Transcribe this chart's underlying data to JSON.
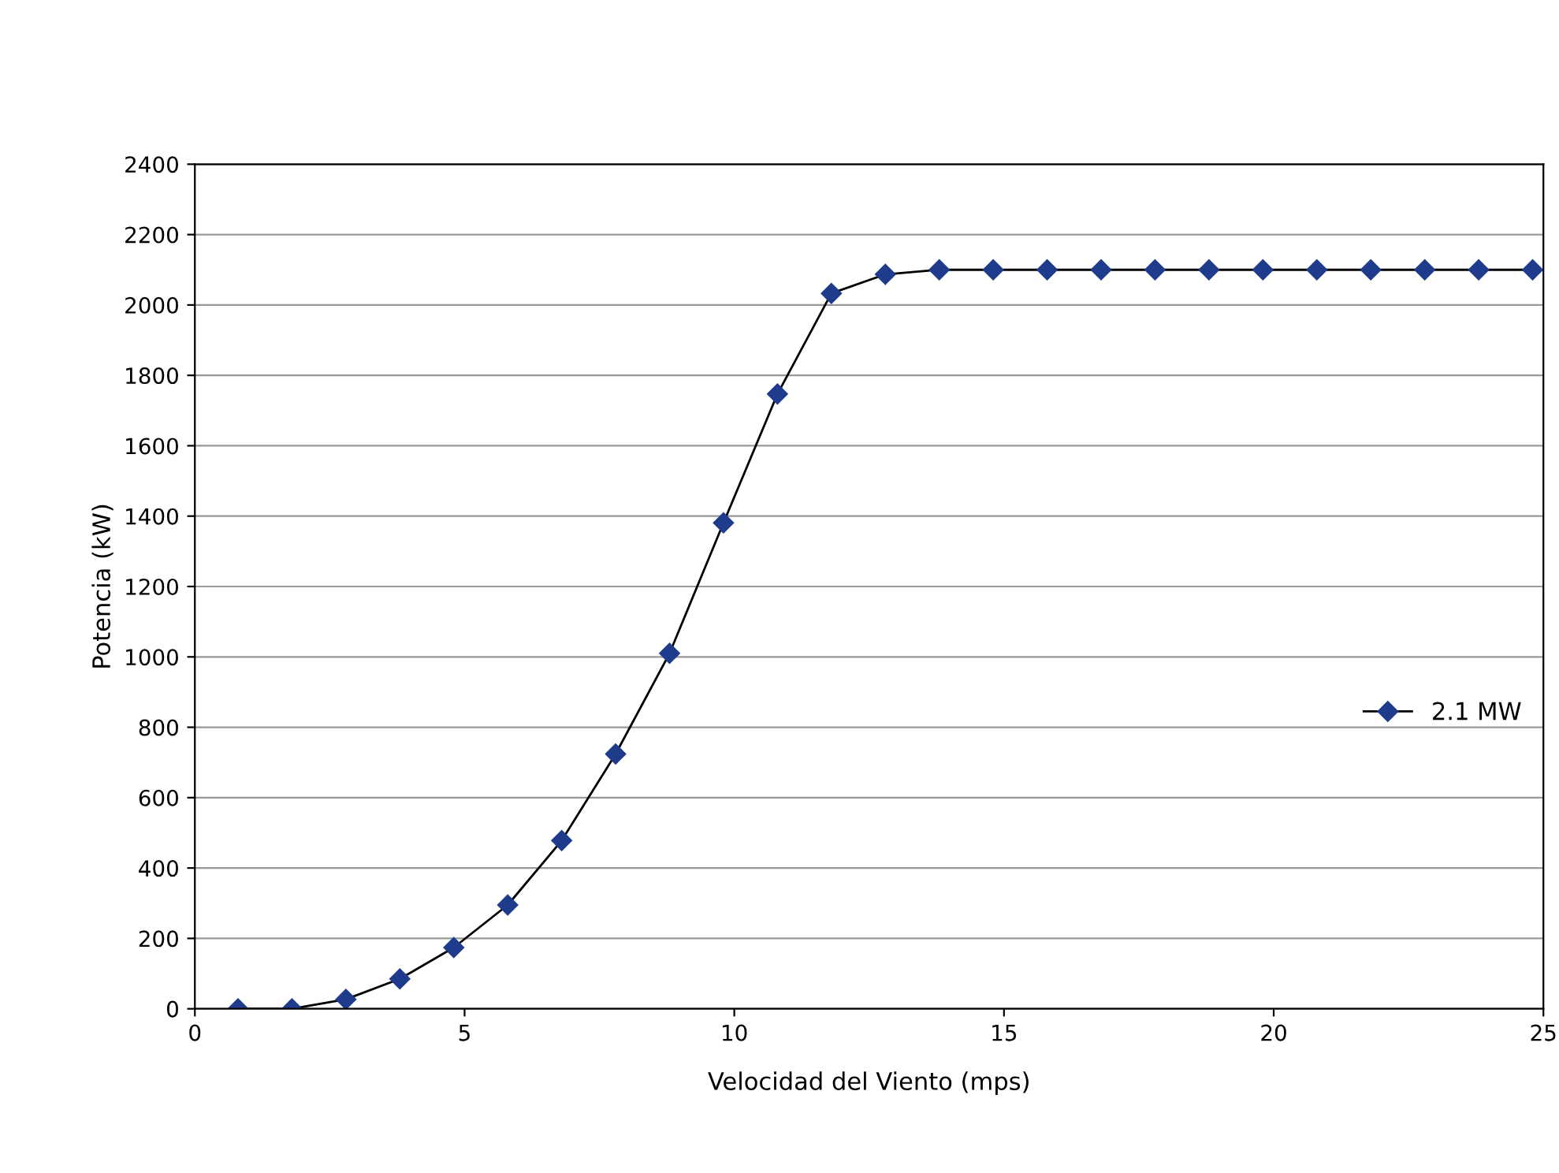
{
  "chart_data": {
    "type": "line",
    "xlabel": "Velocidad del Viento (mps)",
    "ylabel": "Potencia (kW)",
    "x": [
      0.8,
      1.8,
      2.8,
      3.8,
      4.8,
      5.8,
      6.8,
      7.8,
      8.8,
      9.8,
      10.8,
      11.8,
      12.8,
      13.8,
      14.8,
      15.8,
      16.8,
      17.8,
      18.8,
      19.8,
      20.8,
      21.8,
      22.8,
      23.8,
      24.8
    ],
    "series": [
      {
        "name": "2.1 MW",
        "color": "#1f3c8c",
        "values": [
          0,
          0,
          27,
          85,
          174,
          295,
          478,
          724,
          1010,
          1381,
          1747,
          2033,
          2087,
          2100,
          2100,
          2100,
          2100,
          2100,
          2100,
          2100,
          2100,
          2100,
          2100,
          2100,
          2100
        ]
      }
    ],
    "xlim": [
      0,
      25
    ],
    "xticks": [
      0,
      5,
      10,
      15,
      20,
      25
    ],
    "ylim": [
      0,
      2400
    ],
    "yticks": [
      0,
      200,
      400,
      600,
      800,
      1000,
      1200,
      1400,
      1600,
      1800,
      2000,
      2200,
      2400
    ],
    "grid": "y",
    "legend": "right",
    "marker": "diamond",
    "line_style": "solid"
  }
}
